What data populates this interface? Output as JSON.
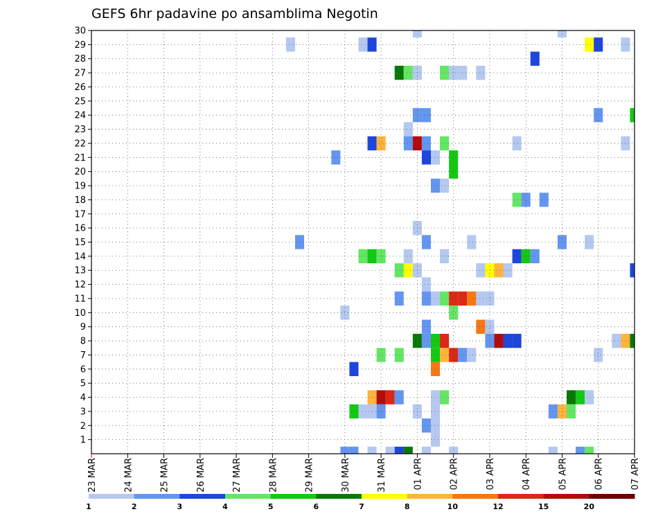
{
  "chart_data": {
    "type": "heatmap",
    "title": "GEFS 6hr padavine po ansamblima Negotin",
    "xlabel": "",
    "ylabel": "",
    "x_tick_labels": [
      "23 MAR",
      "24 MAR",
      "25 MAR",
      "26 MAR",
      "27 MAR",
      "28 MAR",
      "29 MAR",
      "30 MAR",
      "31 MAR",
      "01 APR",
      "02 APR",
      "03 APR",
      "04 APR",
      "05 APR",
      "06 APR",
      "07 APR"
    ],
    "y_tick_labels": [
      "1",
      "2",
      "3",
      "4",
      "5",
      "6",
      "7",
      "8",
      "9",
      "10",
      "11",
      "12",
      "13",
      "14",
      "15",
      "16",
      "17",
      "18",
      "19",
      "20",
      "21",
      "22",
      "23",
      "24",
      "25",
      "26",
      "27",
      "28",
      "29",
      "30"
    ],
    "xlim": [
      0,
      60
    ],
    "ylim": [
      0,
      30
    ],
    "x_unit": "6-hour steps from 23 MAR 00Z",
    "grid": true,
    "colorbar": {
      "labels": [
        "1",
        "2",
        "3",
        "4",
        "5",
        "6",
        "7",
        "8",
        "10",
        "12",
        "15",
        "20"
      ],
      "colors": [
        "#b4c8f0",
        "#6496f0",
        "#1e46dc",
        "#64e664",
        "#14c814",
        "#087808",
        "#ffff00",
        "#ffb43c",
        "#f57814",
        "#dc2814",
        "#b40a0a",
        "#6e0000"
      ]
    },
    "cells": [
      [
        36,
        30,
        0
      ],
      [
        52,
        30,
        0
      ],
      [
        22,
        29,
        0
      ],
      [
        30,
        29,
        0
      ],
      [
        31,
        29,
        2
      ],
      [
        55,
        29,
        6
      ],
      [
        56,
        29,
        2
      ],
      [
        59,
        29,
        0
      ],
      [
        49,
        28,
        2
      ],
      [
        34,
        27,
        5
      ],
      [
        35,
        27,
        3
      ],
      [
        36,
        27,
        0
      ],
      [
        39,
        27,
        3
      ],
      [
        40,
        27,
        0
      ],
      [
        41,
        27,
        0
      ],
      [
        43,
        27,
        0
      ],
      [
        36,
        24,
        1
      ],
      [
        37,
        24,
        1
      ],
      [
        56,
        24,
        1
      ],
      [
        60,
        24,
        4
      ],
      [
        35,
        23,
        0
      ],
      [
        31,
        22,
        2
      ],
      [
        32,
        22,
        7
      ],
      [
        35,
        22,
        1
      ],
      [
        36,
        22,
        10
      ],
      [
        37,
        22,
        1
      ],
      [
        39,
        22,
        3
      ],
      [
        47,
        22,
        0
      ],
      [
        59,
        22,
        0
      ],
      [
        27,
        21,
        1
      ],
      [
        37,
        21,
        2
      ],
      [
        38,
        21,
        0
      ],
      [
        40,
        21,
        4
      ],
      [
        40,
        20,
        4
      ],
      [
        38,
        19,
        1
      ],
      [
        39,
        19,
        0
      ],
      [
        47,
        18,
        3
      ],
      [
        48,
        18,
        1
      ],
      [
        50,
        18,
        1
      ],
      [
        36,
        16,
        0
      ],
      [
        23,
        15,
        1
      ],
      [
        37,
        15,
        1
      ],
      [
        42,
        15,
        0
      ],
      [
        52,
        15,
        1
      ],
      [
        55,
        15,
        0
      ],
      [
        30,
        14,
        3
      ],
      [
        31,
        14,
        4
      ],
      [
        32,
        14,
        3
      ],
      [
        35,
        14,
        0
      ],
      [
        39,
        14,
        0
      ],
      [
        47,
        14,
        2
      ],
      [
        48,
        14,
        4
      ],
      [
        49,
        14,
        1
      ],
      [
        34,
        13,
        3
      ],
      [
        35,
        13,
        6
      ],
      [
        36,
        13,
        0
      ],
      [
        43,
        13,
        0
      ],
      [
        44,
        13,
        6
      ],
      [
        45,
        13,
        7
      ],
      [
        46,
        13,
        0
      ],
      [
        60,
        13,
        2
      ],
      [
        37,
        12,
        0
      ],
      [
        34,
        11,
        1
      ],
      [
        37,
        11,
        1
      ],
      [
        38,
        11,
        0
      ],
      [
        39,
        11,
        3
      ],
      [
        40,
        11,
        9
      ],
      [
        41,
        11,
        9
      ],
      [
        42,
        11,
        8
      ],
      [
        43,
        11,
        0
      ],
      [
        44,
        11,
        0
      ],
      [
        28,
        10,
        0
      ],
      [
        40,
        10,
        3
      ],
      [
        37,
        9,
        1
      ],
      [
        43,
        9,
        8
      ],
      [
        44,
        9,
        0
      ],
      [
        36,
        8,
        5
      ],
      [
        37,
        8,
        1
      ],
      [
        38,
        8,
        4
      ],
      [
        39,
        8,
        9
      ],
      [
        44,
        8,
        1
      ],
      [
        45,
        8,
        10
      ],
      [
        46,
        8,
        2
      ],
      [
        47,
        8,
        2
      ],
      [
        58,
        8,
        0
      ],
      [
        59,
        8,
        7
      ],
      [
        60,
        8,
        5
      ],
      [
        32,
        7,
        3
      ],
      [
        34,
        7,
        3
      ],
      [
        38,
        7,
        4
      ],
      [
        39,
        7,
        7
      ],
      [
        40,
        7,
        9
      ],
      [
        41,
        7,
        1
      ],
      [
        42,
        7,
        0
      ],
      [
        56,
        7,
        0
      ],
      [
        29,
        6,
        2
      ],
      [
        38,
        6,
        8
      ],
      [
        31,
        4,
        7
      ],
      [
        32,
        4,
        10
      ],
      [
        33,
        4,
        9
      ],
      [
        34,
        4,
        1
      ],
      [
        38,
        4,
        0
      ],
      [
        39,
        4,
        3
      ],
      [
        53,
        4,
        5
      ],
      [
        54,
        4,
        4
      ],
      [
        55,
        4,
        0
      ],
      [
        29,
        3,
        4
      ],
      [
        30,
        3,
        0
      ],
      [
        31,
        3,
        0
      ],
      [
        32,
        3,
        1
      ],
      [
        36,
        3,
        0
      ],
      [
        38,
        3,
        0
      ],
      [
        51,
        3,
        1
      ],
      [
        52,
        3,
        7
      ],
      [
        53,
        3,
        3
      ],
      [
        37,
        2,
        1
      ],
      [
        38,
        2,
        0
      ],
      [
        38,
        1,
        0
      ],
      [
        28,
        0,
        1
      ],
      [
        29,
        0,
        1
      ],
      [
        31,
        0,
        0
      ],
      [
        33,
        0,
        0
      ],
      [
        34,
        0,
        2
      ],
      [
        35,
        0,
        5
      ],
      [
        37,
        0,
        0
      ],
      [
        40,
        0,
        0
      ],
      [
        51,
        0,
        0
      ],
      [
        54,
        0,
        1
      ],
      [
        55,
        0,
        3
      ]
    ]
  }
}
